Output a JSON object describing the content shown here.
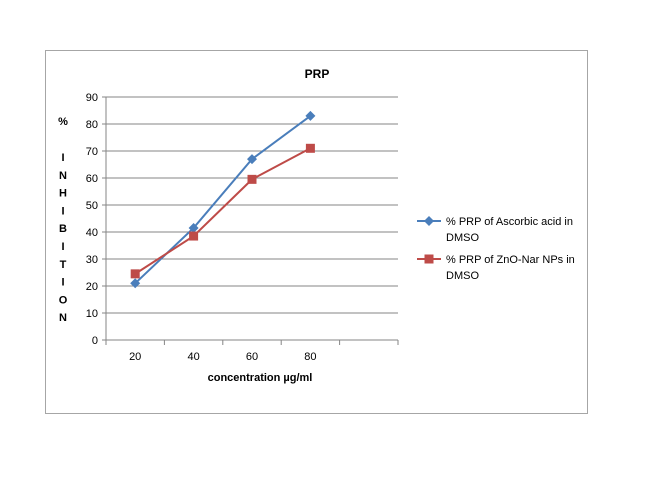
{
  "chart_data": {
    "type": "line",
    "title": "PRP",
    "xlabel": "concentration µg/ml",
    "ylabel": "% INHIBITION",
    "ylabel_percent": "%",
    "ylabel_letters": [
      "I",
      "N",
      "H",
      "I",
      "B",
      "I",
      "T",
      "I",
      "O",
      "N"
    ],
    "categories": [
      "20",
      "40",
      "60",
      "80"
    ],
    "ylim": [
      0,
      90
    ],
    "yticks": [
      "0",
      "10",
      "20",
      "30",
      "40",
      "50",
      "60",
      "70",
      "80",
      "90"
    ],
    "grid": true,
    "legend_position": "right",
    "series": [
      {
        "name": "% PRP of Ascorbic acid in DMSO",
        "legend_lines": [
          "% PRP of Ascorbic acid in",
          "DMSO"
        ],
        "values": [
          21,
          41.5,
          67,
          83
        ],
        "color": "#4a7ebb",
        "marker": "diamond"
      },
      {
        "name": "% PRP of ZnO-Nar NPs in DMSO",
        "legend_lines": [
          "% PRP of ZnO-Nar NPs in",
          "DMSO"
        ],
        "values": [
          24.5,
          38.5,
          59.5,
          71
        ],
        "color": "#be4b48",
        "marker": "square"
      }
    ]
  }
}
